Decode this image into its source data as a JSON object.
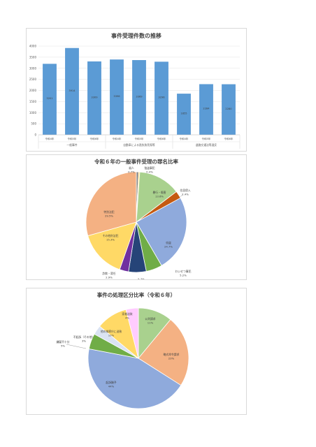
{
  "chart_data": [
    {
      "type": "bar",
      "title": "事件受理件数の推移",
      "categories": [
        "令和4年",
        "令和5年",
        "令和6年",
        "令和4年",
        "令和5年",
        "令和6年",
        "令和4年",
        "令和5年",
        "令和6年"
      ],
      "groups": [
        "一般事件",
        "自動車による過失致死傷等",
        "道路交通法等違反"
      ],
      "values": [
        3201,
        3914,
        3309,
        3396,
        3369,
        3296,
        1855,
        2284,
        2280
      ],
      "value_labels": [
        "3201",
        "3914",
        "3309",
        "3396",
        "3369",
        "3296",
        "1855",
        "2284",
        "2280"
      ],
      "yticks": [
        "0",
        "500",
        "1000",
        "1500",
        "2000",
        "2500",
        "3000",
        "3500",
        "4000"
      ],
      "ylim": [
        0,
        4000
      ],
      "grid": true,
      "colors": {
        "bar": "#5b9bd5"
      }
    },
    {
      "type": "pie",
      "title": "令和６年の一般事件受理の罪名比率",
      "slices": [
        {
          "name": "殺人",
          "pct": "0.7%",
          "value": 0.7,
          "color": "#7f7f7f"
        },
        {
          "name": "強盗事犯",
          "pct": "0.4%",
          "value": 0.4,
          "color": "#ffd966"
        },
        {
          "name": "暴行・傷害",
          "pct": "13.6%",
          "value": 13.6,
          "color": "#a9d18e"
        },
        {
          "name": "住居侵入",
          "pct": "2.4%",
          "value": 2.4,
          "color": "#c55a11"
        },
        {
          "name": "窃盗",
          "pct": "24.7%",
          "value": 24.7,
          "color": "#8faadc"
        },
        {
          "name": "わいせつ事犯",
          "pct": "5.2%",
          "value": 5.2,
          "color": "#70ad47"
        },
        {
          "name": "",
          "pct": "5.7%",
          "value": 5.7,
          "color": "#264478"
        },
        {
          "name": "詐欺・背任",
          "pct": "2.9%",
          "value": 2.9,
          "color": "#7030a0"
        },
        {
          "name": "その他刑法犯",
          "pct": "15.3%",
          "value": 15.3,
          "color": "#ffd966"
        },
        {
          "name": "特別法犯",
          "pct": "29.5%",
          "value": 29.5,
          "color": "#f4b183"
        }
      ]
    },
    {
      "type": "pie",
      "title": "事件の処理区分比率（令和６年）",
      "slices": [
        {
          "name": "公判請求",
          "pct": "11%",
          "value": 11,
          "color": "#a9d18e"
        },
        {
          "name": "略式命令請求",
          "pct": "23%",
          "value": 23,
          "color": "#f4b183"
        },
        {
          "name": "起訴猶予",
          "pct": "44%",
          "value": 44,
          "color": "#8faadc"
        },
        {
          "name": "嫌疑不十分",
          "pct": "5%",
          "value": 5,
          "color": "#70ad47"
        },
        {
          "name": "不起訴（その他）",
          "pct": "3%",
          "value": 3,
          "color": "#dae3f3"
        },
        {
          "name": "他の検察庁に送致",
          "pct": "10%",
          "value": 10,
          "color": "#ffd966"
        },
        {
          "name": "家裁送致",
          "pct": "4%",
          "value": 4,
          "color": "#ffccff"
        }
      ]
    }
  ]
}
